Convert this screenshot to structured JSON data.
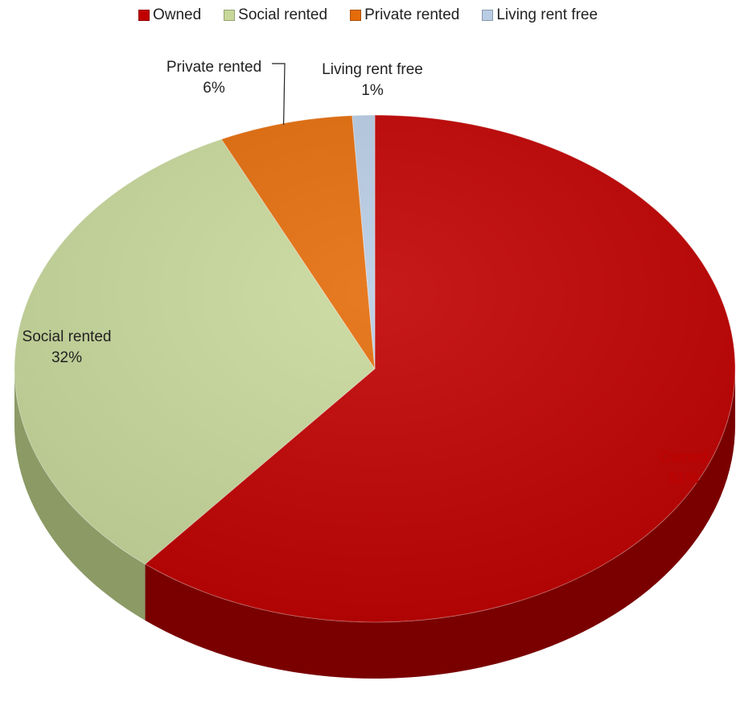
{
  "chart_data": {
    "type": "pie",
    "title": "",
    "legend_position": "top",
    "categories": [
      "Owned",
      "Social rented",
      "Private rented",
      "Living rent free"
    ],
    "values": [
      61,
      32,
      6,
      1
    ],
    "labels": [
      "61%",
      "32%",
      "6%",
      "1%"
    ],
    "colors": [
      "#c00000",
      "#c8d89b",
      "#e46c0a",
      "#b8cce4"
    ],
    "side_colors": [
      "#7a0000",
      "#8c9a66",
      "#9a4806",
      "#7b8ea5"
    ]
  }
}
